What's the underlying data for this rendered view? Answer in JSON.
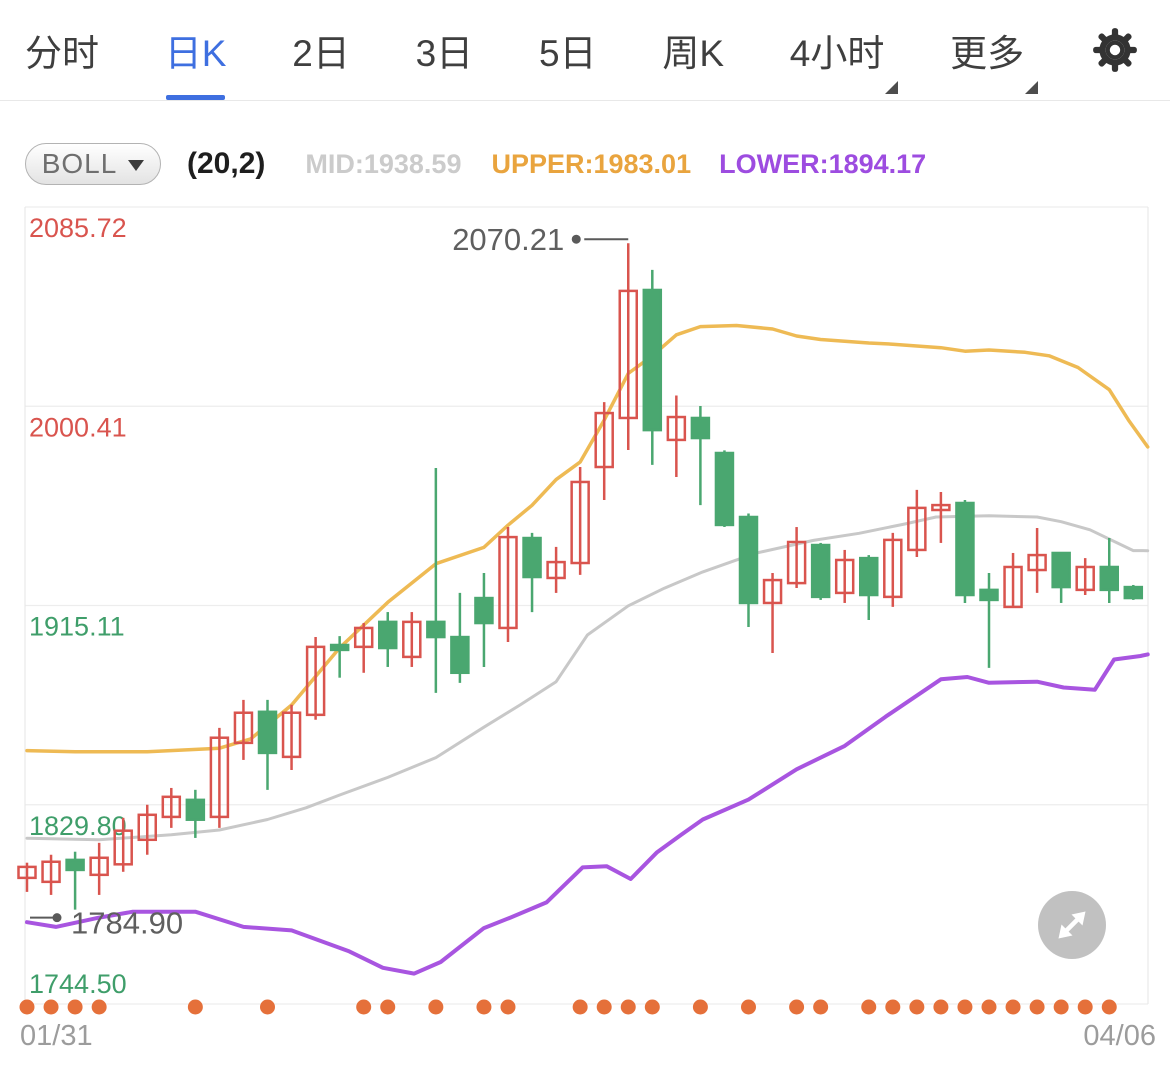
{
  "header": {
    "tabs": [
      {
        "label": "分时",
        "active": false,
        "dropdown": false
      },
      {
        "label": "日K",
        "active": true,
        "dropdown": false
      },
      {
        "label": "2日",
        "active": false,
        "dropdown": false
      },
      {
        "label": "3日",
        "active": false,
        "dropdown": false
      },
      {
        "label": "5日",
        "active": false,
        "dropdown": false
      },
      {
        "label": "周K",
        "active": false,
        "dropdown": false
      },
      {
        "label": "4小时",
        "active": false,
        "dropdown": true
      },
      {
        "label": "更多",
        "active": false,
        "dropdown": true
      }
    ],
    "active_color": "#3e6fe0",
    "settings_icon": "gear-icon"
  },
  "indicator_bar": {
    "selector_label": "BOLL",
    "params": "(20,2)",
    "values": [
      {
        "text": "MID:1938.59",
        "color": "#cbcbcb"
      },
      {
        "text": "UPPER:1983.01",
        "color": "#e9a43e"
      },
      {
        "text": "LOWER:1894.17",
        "color": "#9d4ce0"
      }
    ]
  },
  "chart_data": {
    "type": "candlestick",
    "title": "",
    "grid": true,
    "y_axis": {
      "max": 2085.72,
      "min": 1744.5,
      "labels": [
        {
          "text": "2085.72",
          "value": 2085.72,
          "color": "#d9544e"
        },
        {
          "text": "2000.41",
          "value": 2000.41,
          "color": "#d9544e"
        },
        {
          "text": "1915.11",
          "value": 1915.11,
          "color": "#3f9e6a"
        },
        {
          "text": "1829.80",
          "value": 1829.8,
          "color": "#3f9e6a"
        },
        {
          "text": "1744.50",
          "value": 1744.5,
          "color": "#3f9e6a"
        }
      ]
    },
    "candles": {
      "up_color": "#d9544e",
      "down_color": "#4aa770",
      "up_style": "hollow",
      "ohlc": [
        [
          1798.5,
          1805.0,
          1792.5,
          1803.2
        ],
        [
          1796.8,
          1808.4,
          1791.2,
          1805.4
        ],
        [
          1806.2,
          1809.7,
          1784.9,
          1801.9
        ],
        [
          1799.8,
          1813.5,
          1791.2,
          1807.1
        ],
        [
          1804.3,
          1824.2,
          1801.1,
          1818.7
        ],
        [
          1814.8,
          1829.8,
          1808.4,
          1825.5
        ],
        [
          1824.6,
          1837.0,
          1819.9,
          1833.2
        ],
        [
          1831.9,
          1836.2,
          1815.6,
          1823.4
        ],
        [
          1824.6,
          1862.7,
          1819.9,
          1858.5
        ],
        [
          1856.3,
          1874.7,
          1849.0,
          1869.2
        ],
        [
          1869.6,
          1874.7,
          1836.2,
          1852.0
        ],
        [
          1850.3,
          1872.6,
          1844.7,
          1869.2
        ],
        [
          1868.3,
          1901.6,
          1866.2,
          1897.4
        ],
        [
          1898.2,
          1902.0,
          1884.2,
          1896.1
        ],
        [
          1897.4,
          1907.6,
          1886.3,
          1905.5
        ],
        [
          1908.1,
          1912.3,
          1888.8,
          1896.9
        ],
        [
          1893.1,
          1912.3,
          1888.8,
          1908.1
        ],
        [
          1908.1,
          1974.0,
          1877.7,
          1901.6
        ],
        [
          1901.6,
          1920.5,
          1882.0,
          1886.3
        ],
        [
          1918.3,
          1929.0,
          1888.8,
          1907.6
        ],
        [
          1905.5,
          1948.7,
          1899.5,
          1944.4
        ],
        [
          1944.0,
          1946.2,
          1912.3,
          1927.3
        ],
        [
          1926.9,
          1940.2,
          1920.5,
          1933.7
        ],
        [
          1933.3,
          1974.4,
          1928.2,
          1968.0
        ],
        [
          1974.4,
          2002.2,
          1960.3,
          1997.5
        ],
        [
          1995.4,
          2070.21,
          1981.7,
          2049.8
        ],
        [
          2050.2,
          2058.8,
          1975.3,
          1990.2
        ],
        [
          1986.0,
          2005.0,
          1970.1,
          1995.8
        ],
        [
          1995.4,
          2000.5,
          1958.1,
          1986.8
        ],
        [
          1980.4,
          1981.5,
          1948.7,
          1949.6
        ],
        [
          1953.0,
          1954.5,
          1905.9,
          1916.2
        ],
        [
          1916.2,
          1929.0,
          1894.8,
          1926.0
        ],
        [
          1924.7,
          1948.7,
          1922.6,
          1942.3
        ],
        [
          1941.0,
          1941.9,
          1917.5,
          1918.8
        ],
        [
          1920.5,
          1938.9,
          1916.2,
          1934.6
        ],
        [
          1935.4,
          1936.7,
          1908.9,
          1919.6
        ],
        [
          1918.8,
          1946.2,
          1914.5,
          1943.2
        ],
        [
          1938.9,
          1964.6,
          1935.9,
          1956.9
        ],
        [
          1956.0,
          1963.7,
          1941.9,
          1958.1
        ],
        [
          1959.0,
          1960.3,
          1916.2,
          1919.6
        ],
        [
          1921.8,
          1929.0,
          1888.4,
          1917.5
        ],
        [
          1914.5,
          1937.6,
          1914.1,
          1931.6
        ],
        [
          1930.3,
          1948.3,
          1920.5,
          1936.7
        ],
        [
          1937.6,
          1938.0,
          1916.2,
          1923.0
        ],
        [
          1921.8,
          1935.4,
          1919.6,
          1931.6
        ],
        [
          1931.6,
          1944.0,
          1916.2,
          1921.8
        ],
        [
          1923.0,
          1923.9,
          1917.5,
          1918.3
        ]
      ]
    },
    "bands": {
      "upper": {
        "name": "UPPER",
        "color": "#eeba54",
        "last_value": 1983.01,
        "points": [
          [
            0,
            1853
          ],
          [
            2,
            1852.5
          ],
          [
            5,
            1852.5
          ],
          [
            8,
            1854
          ],
          [
            9.3,
            1858
          ],
          [
            11,
            1872.5
          ],
          [
            13,
            1897
          ],
          [
            15,
            1916.5
          ],
          [
            17,
            1933
          ],
          [
            19,
            1940
          ],
          [
            20,
            1949.5
          ],
          [
            21,
            1958
          ],
          [
            22,
            1969
          ],
          [
            23,
            1976.5
          ],
          [
            24,
            1994.5
          ],
          [
            25,
            2014.5
          ],
          [
            26,
            2022
          ],
          [
            27,
            2031
          ],
          [
            28,
            2034.5
          ],
          [
            29.5,
            2035
          ],
          [
            31,
            2033.5
          ],
          [
            32,
            2030.5
          ],
          [
            33,
            2029
          ],
          [
            35,
            2027.5
          ],
          [
            36,
            2027
          ],
          [
            38,
            2025.5
          ],
          [
            39,
            2024
          ],
          [
            40,
            2024.5
          ],
          [
            41.5,
            2023.5
          ],
          [
            42.5,
            2022
          ],
          [
            43.7,
            2017
          ],
          [
            45,
            2007.5
          ],
          [
            45.8,
            1994.5
          ],
          [
            46.6,
            1983.01
          ]
        ]
      },
      "mid": {
        "name": "MID",
        "color": "#c8c8c8",
        "last_value": 1938.59,
        "points": [
          [
            0,
            1815.5
          ],
          [
            3,
            1814.8
          ],
          [
            6,
            1817
          ],
          [
            8,
            1819
          ],
          [
            10,
            1823.5
          ],
          [
            11.6,
            1828.5
          ],
          [
            13,
            1834
          ],
          [
            15,
            1841.5
          ],
          [
            17,
            1850
          ],
          [
            19,
            1863
          ],
          [
            20.5,
            1872.5
          ],
          [
            22,
            1882.5
          ],
          [
            23.3,
            1902.5
          ],
          [
            25,
            1915
          ],
          [
            26.5,
            1922.5
          ],
          [
            28.1,
            1929.5
          ],
          [
            30.3,
            1937.5
          ],
          [
            32.7,
            1943
          ],
          [
            34.6,
            1946
          ],
          [
            36.5,
            1950
          ],
          [
            37.8,
            1953
          ],
          [
            40,
            1953.5
          ],
          [
            42,
            1953
          ],
          [
            43,
            1951
          ],
          [
            44.2,
            1947.5
          ],
          [
            46,
            1938.6
          ],
          [
            46.6,
            1938.59
          ]
        ]
      },
      "lower": {
        "name": "LOWER",
        "color": "#a855e0",
        "last_value": 1894.17,
        "points": [
          [
            0,
            1779.5
          ],
          [
            1.2,
            1777.5
          ],
          [
            3,
            1781.5
          ],
          [
            4.4,
            1784
          ],
          [
            7,
            1784
          ],
          [
            9,
            1777.5
          ],
          [
            11,
            1776
          ],
          [
            13.4,
            1767
          ],
          [
            14.8,
            1760
          ],
          [
            16.1,
            1757.5
          ],
          [
            17.2,
            1762.5
          ],
          [
            19,
            1777
          ],
          [
            20.1,
            1781.5
          ],
          [
            21.6,
            1788
          ],
          [
            23.1,
            1803
          ],
          [
            24.1,
            1803.5
          ],
          [
            25.1,
            1798
          ],
          [
            26.2,
            1809.5
          ],
          [
            27.2,
            1817
          ],
          [
            28.1,
            1823.5
          ],
          [
            30,
            1832
          ],
          [
            32,
            1845
          ],
          [
            34,
            1855
          ],
          [
            35.7,
            1867.5
          ],
          [
            38,
            1883.5
          ],
          [
            39.1,
            1884.5
          ],
          [
            40,
            1882
          ],
          [
            42,
            1882.5
          ],
          [
            43.1,
            1880
          ],
          [
            44.4,
            1879
          ],
          [
            45.2,
            1892
          ],
          [
            46.3,
            1893.5
          ],
          [
            46.6,
            1894.17
          ]
        ]
      }
    },
    "event_dots": {
      "color": "#e5703a",
      "candle_indexes": [
        0,
        1,
        2,
        3,
        7,
        10,
        14,
        15,
        17,
        19,
        20,
        23,
        24,
        25,
        26,
        28,
        30,
        32,
        33,
        35,
        36,
        37,
        38,
        39,
        40,
        41,
        42,
        43,
        44,
        45
      ]
    },
    "annotations": {
      "high": {
        "label": "2070.21",
        "price": 2070.21,
        "candle_index": 25,
        "color": "#5f5f5f"
      },
      "low": {
        "label": "1784.90",
        "price": 1784.9,
        "candle_index": 2,
        "color": "#5f5f5f"
      }
    },
    "x_axis": {
      "start_label": "01/31",
      "end_label": "04/06"
    }
  },
  "footer": {
    "start_date": "01/31",
    "end_date": "04/06"
  },
  "expand_button_icon": "expand-diagonal-arrows-icon"
}
